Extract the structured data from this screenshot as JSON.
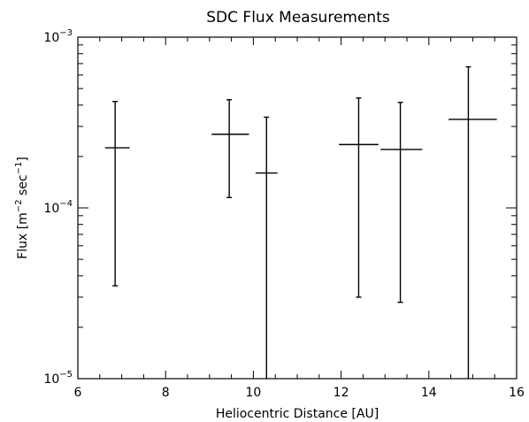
{
  "chart_data": {
    "type": "scatter",
    "title": "SDC Flux Measurements",
    "xlabel": "Heliocentric Distance [AU]",
    "ylabel": {
      "prefix": "Flux [m",
      "exp1": "−2",
      "middle": " sec",
      "exp2": "−1",
      "suffix": "]"
    },
    "xlim": [
      6,
      16
    ],
    "ylim": [
      1e-05,
      0.001
    ],
    "yscale": "log",
    "grid": false,
    "x_ticks": [
      {
        "value": 6,
        "label": "6"
      },
      {
        "value": 8,
        "label": "8"
      },
      {
        "value": 10,
        "label": "10"
      },
      {
        "value": 12,
        "label": "12"
      },
      {
        "value": 14,
        "label": "14"
      },
      {
        "value": 16,
        "label": "16"
      }
    ],
    "y_ticks": [
      {
        "value": 1e-05,
        "base": "10",
        "exp": "−5"
      },
      {
        "value": 0.0001,
        "base": "10",
        "exp": "−4"
      },
      {
        "value": 0.001,
        "base": "10",
        "exp": "−3"
      }
    ],
    "points": [
      {
        "x": 6.85,
        "x_low": 6.62,
        "x_high": 7.18,
        "y": 0.000225,
        "y_low": 3.5e-05,
        "y_high": 0.00042
      },
      {
        "x": 9.45,
        "x_low": 9.05,
        "x_high": 9.9,
        "y": 0.00027,
        "y_low": 0.000115,
        "y_high": 0.00043
      },
      {
        "x": 10.3,
        "x_low": 10.05,
        "x_high": 10.55,
        "y": 0.00016,
        "y_low": 1e-05,
        "y_high": 0.00034
      },
      {
        "x": 12.4,
        "x_low": 11.95,
        "x_high": 12.85,
        "y": 0.000235,
        "y_low": 3e-05,
        "y_high": 0.00044
      },
      {
        "x": 13.35,
        "x_low": 12.9,
        "x_high": 13.85,
        "y": 0.00022,
        "y_low": 2.8e-05,
        "y_high": 0.000415
      },
      {
        "x": 14.9,
        "x_low": 14.45,
        "x_high": 15.55,
        "y": 0.00033,
        "y_low": 1e-05,
        "y_high": 0.00067
      }
    ]
  }
}
